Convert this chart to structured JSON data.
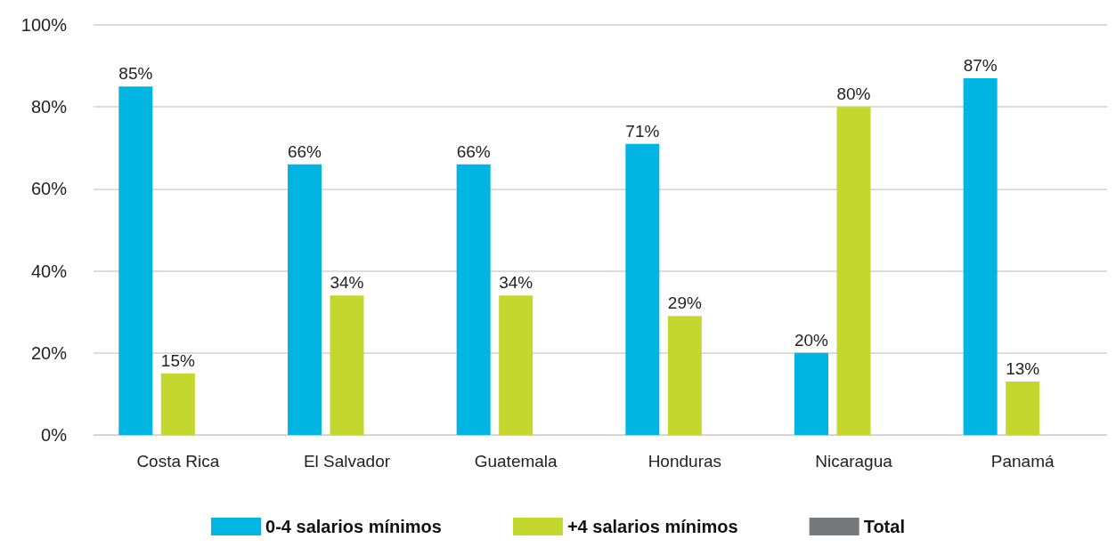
{
  "chart_data": {
    "type": "bar",
    "categories": [
      "Costa Rica",
      "El Salvador",
      "Guatemala",
      "Honduras",
      "Nicaragua",
      "Panamá"
    ],
    "series": [
      {
        "name": "0-4 salarios mínimos",
        "color": "#00b5e2",
        "values": [
          85,
          66,
          66,
          71,
          20,
          87
        ],
        "value_labels": [
          "85%",
          "66%",
          "66%",
          "71%",
          "20%",
          "87%"
        ]
      },
      {
        "name": "+4 salarios mínimos",
        "color": "#c4d72f",
        "values": [
          15,
          34,
          34,
          29,
          80,
          13
        ],
        "value_labels": [
          "15%",
          "34%",
          "34%",
          "29%",
          "80%",
          "13%"
        ]
      },
      {
        "name": "Total",
        "color": "#77787b",
        "values": [
          null,
          null,
          null,
          null,
          null,
          null
        ]
      }
    ],
    "ylim": [
      0,
      100
    ],
    "yticks": [
      {
        "value": 0,
        "label": "0%"
      },
      {
        "value": 20,
        "label": "20%"
      },
      {
        "value": 40,
        "label": "40%"
      },
      {
        "value": 60,
        "label": "60%"
      },
      {
        "value": 80,
        "label": "80%"
      },
      {
        "value": 100,
        "label": "100%"
      }
    ],
    "grid": "y",
    "legend": "bottom"
  }
}
